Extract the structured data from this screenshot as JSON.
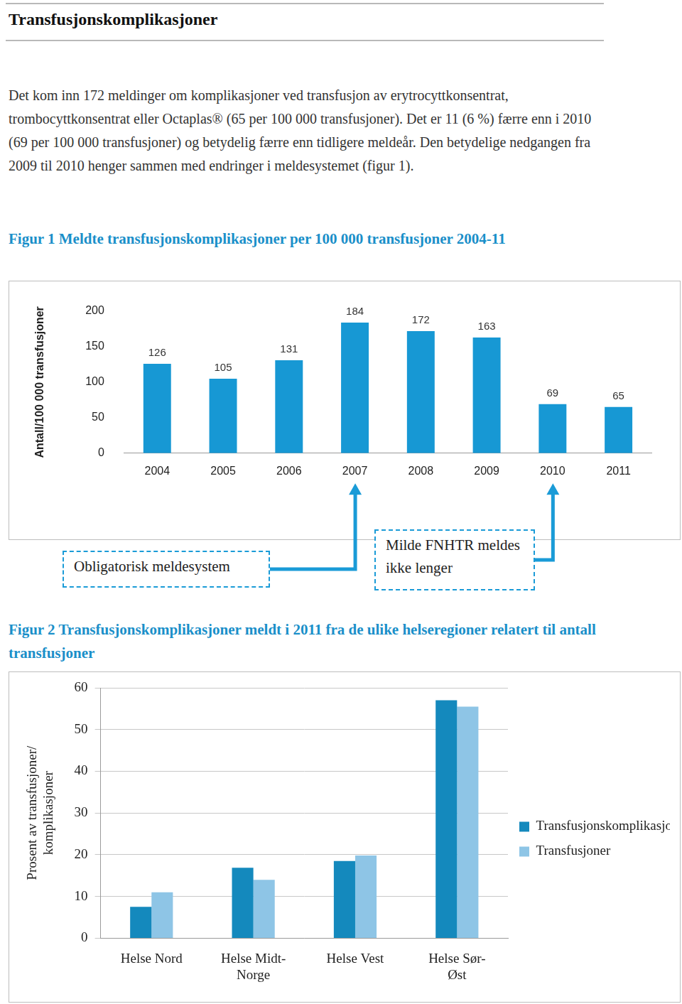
{
  "document": {
    "title": "Transfusjonskomplikasjoner",
    "text": "Det kom inn 172 meldinger om komplikasjoner ved transfusjon av erytrocyttkonsentrat, trombocyttkonsentrat eller Octaplas® (65 per 100 000 transfusjoner). Det er 11 (6 %) færre enn i 2010 (69 per 100 000 transfusjoner) og betydelig færre enn tidligere meldeår. Den betydelige nedgangen fra 2009 til 2010 henger sammen med endringer i meldesystemet (figur 1)."
  },
  "chart_data": [
    {
      "type": "bar",
      "title": "Figur 1 Meldte transfusjonskomplikasjoner per 100 000 transfusjoner 2004-11",
      "y_label": "Antall/100 000 transfusjoner",
      "categories": [
        "2004",
        "2005",
        "2006",
        "2007",
        "2008",
        "2009",
        "2010",
        "2011"
      ],
      "values": [
        126,
        105,
        131,
        184,
        172,
        163,
        69,
        65
      ],
      "color": "#1798d4",
      "ylim": [
        0,
        200
      ],
      "yticks": [
        0,
        50,
        100,
        150,
        200
      ],
      "grid": false,
      "data_labels": true,
      "annotations": [
        {
          "text": "Obligatorisk meldesystem",
          "category": "2007"
        },
        {
          "text": "Milde FNHTR meldes ikke lenger",
          "category": "2010"
        }
      ]
    },
    {
      "type": "bar",
      "title": "Figur 2 Transfusjonskomplikasjoner meldt i 2011 fra de ulike helseregioner relatert til antall transfusjoner",
      "y_label": "Prosent av transfusjoner/ komplikasjoner",
      "categories": [
        "Helse Nord",
        "Helse Midt-Norge",
        "Helse Vest",
        "Helse Sør-Øst"
      ],
      "series": [
        {
          "name": "Transfusjonskomplikasjoner",
          "color": "#1489bd",
          "values": [
            7.5,
            16.9,
            18.5,
            57
          ]
        },
        {
          "name": "Transfusjoner",
          "color": "#8ec5e6",
          "values": [
            11,
            14,
            19.8,
            55.5
          ]
        }
      ],
      "ylim": [
        0,
        60
      ],
      "yticks": [
        0,
        10,
        20,
        30,
        40,
        50,
        60
      ],
      "grid": true,
      "legend": "right"
    }
  ]
}
